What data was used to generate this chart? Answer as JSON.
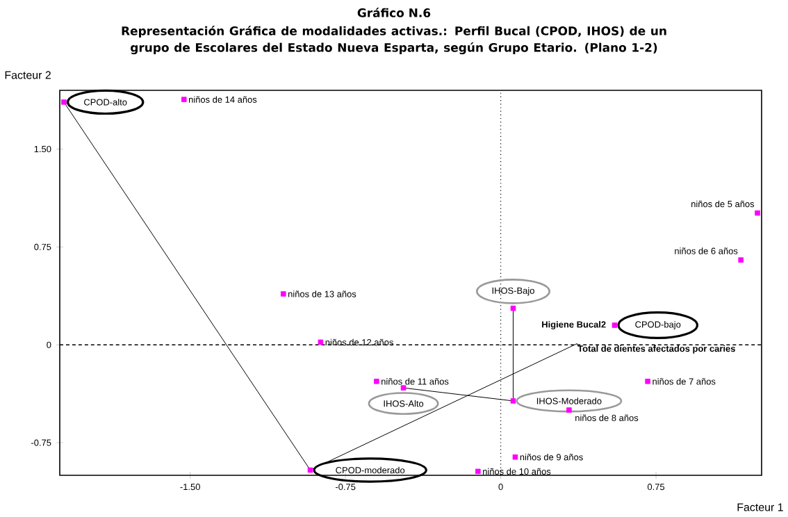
{
  "chart_data": {
    "type": "scatter",
    "title": "Gráfico N.6",
    "subtitle": "Representación Gráfica de modalidades activas.: Perfil Bucal (CPOD, IHOS) de un grupo de Escolares del Estado Nueva Esparta, según Grupo Etario. (Plano 1-2)",
    "xlabel": "Facteur 1",
    "ylabel": "Facteur 2",
    "xlim": [
      -2.13,
      1.26
    ],
    "ylim": [
      -1.0,
      1.95
    ],
    "xticks": [
      {
        "value": -1.5,
        "label": "-1.50"
      },
      -0.75,
      0,
      {
        "value": 0.75,
        "label": "0.75"
      }
    ],
    "yticks": [
      -0.75,
      0,
      0.75,
      {
        "value": 1.5,
        "label": "1.50"
      }
    ],
    "ref_lines": [
      {
        "axis": "x",
        "value": 0,
        "line_style": "dotted"
      },
      {
        "axis": "y",
        "value": 0,
        "line_style": "dashed"
      }
    ],
    "series": [
      {
        "type": "line",
        "color": "#000000",
        "x": [
          -2.11,
          -0.92,
          0.37
        ],
        "values": [
          1.86,
          -0.96,
          0.01
        ],
        "marker": "none"
      },
      {
        "type": "line",
        "color": "#000000",
        "x": [
          0.06,
          0.06,
          -0.47
        ],
        "values": [
          0.28,
          -0.43,
          -0.33
        ],
        "marker": "none"
      },
      {
        "color": "#ff00ff",
        "marker": "square",
        "x": [
          -2.11,
          -0.92,
          0.55,
          0.06,
          0.06,
          -0.47,
          1.24,
          1.16,
          0.71,
          0.33,
          0.07,
          -0.11,
          -0.6,
          -0.87,
          -1.05,
          -1.53
        ],
        "values": [
          1.86,
          -0.96,
          0.15,
          0.28,
          -0.43,
          -0.33,
          1.01,
          0.65,
          -0.28,
          -0.5,
          -0.86,
          -0.97,
          -0.28,
          0.02,
          0.39,
          1.88
        ]
      }
    ],
    "annotations": [
      {
        "text": "CPOD-alto",
        "x": -2.11,
        "y": 1.86
      },
      {
        "text": "CPOD-moderado",
        "x": -0.92,
        "y": -0.96
      },
      {
        "text": "CPOD-bajo",
        "x": 0.55,
        "y": 0.15
      },
      {
        "text": "IHOS-Bajo",
        "x": 0.06,
        "y": 0.28
      },
      {
        "text": "IHOS-Moderado",
        "x": 0.06,
        "y": -0.43
      },
      {
        "text": "IHOS-Alto",
        "x": -0.47,
        "y": -0.33
      },
      {
        "text": "niños de 5 años",
        "x": 1.24,
        "y": 1.01
      },
      {
        "text": "niños de 6 años",
        "x": 1.16,
        "y": 0.65
      },
      {
        "text": "niños de 7 años",
        "x": 0.71,
        "y": -0.28
      },
      {
        "text": "niños de 8 años",
        "x": 0.33,
        "y": -0.5
      },
      {
        "text": "niños de 9 años",
        "x": 0.07,
        "y": -0.86
      },
      {
        "text": "niños de 10 años",
        "x": -0.11,
        "y": -0.97
      },
      {
        "text": "niños de 11 años",
        "x": -0.6,
        "y": -0.28
      },
      {
        "text": "niños de 12 años",
        "x": -0.87,
        "y": 0.02
      },
      {
        "text": "niños de 13 años",
        "x": -1.05,
        "y": 0.39
      },
      {
        "text": "niños de 14 años",
        "x": -1.53,
        "y": 1.88
      },
      "Higiene Bucal2",
      "Total de dientes afectados por caries"
    ]
  }
}
